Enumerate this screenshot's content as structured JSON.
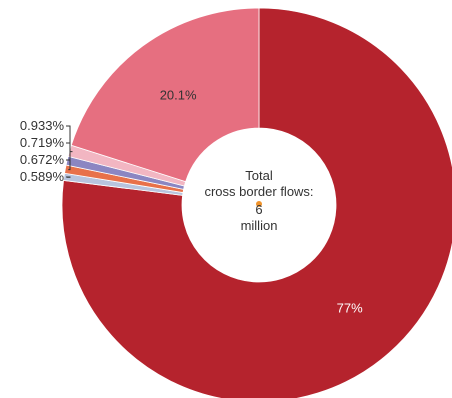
{
  "chart_data": {
    "type": "pie",
    "donut": true,
    "slices": [
      {
        "label": "77%",
        "value": 77,
        "color": "#b5232d",
        "label_color": "#ffffff"
      },
      {
        "label": "0.589%",
        "value": 0.589,
        "color": "#b8c4de",
        "label_color": "#333333"
      },
      {
        "label": "0.672%",
        "value": 0.672,
        "color": "#e8714a",
        "label_color": "#333333"
      },
      {
        "label": "0.719%",
        "value": 0.719,
        "color": "#8b86c2",
        "label_color": "#333333"
      },
      {
        "label": "0.933%",
        "value": 0.933,
        "color": "#f2b6c2",
        "label_color": "#333333"
      },
      {
        "label": "20.1%",
        "value": 20.1,
        "color": "#e66f80",
        "label_color": "#333333"
      }
    ],
    "center": {
      "line1": "Total",
      "line2": "cross border flows:",
      "line3": "6",
      "line4": "million"
    },
    "center_marker_color": "#f0932b"
  }
}
